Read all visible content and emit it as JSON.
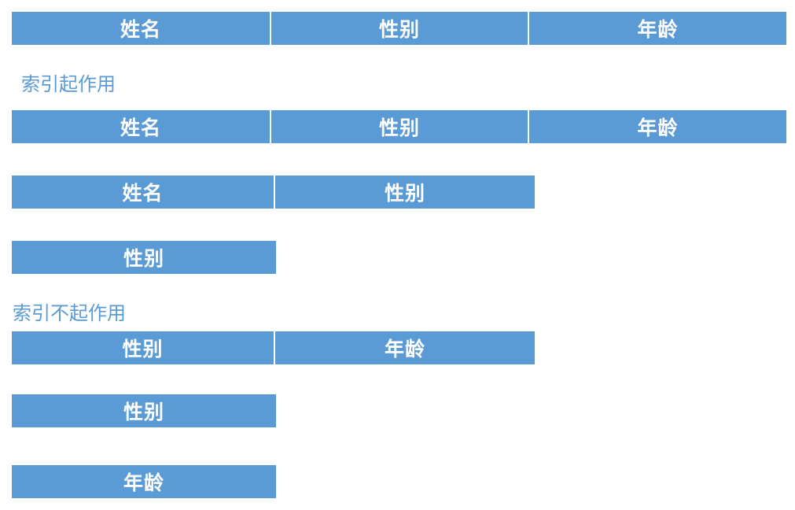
{
  "colors": {
    "bar_fill": "#5b9bd5",
    "bar_text": "#ffffff",
    "heading_text": "#5b9bd5"
  },
  "sections": {
    "works_heading": "索引起作用",
    "fails_heading": "索引不起作用"
  },
  "rows": [
    {
      "cells": [
        "姓名",
        "性别",
        "年龄"
      ]
    },
    {
      "cells": [
        "姓名",
        "性别",
        "年龄"
      ]
    },
    {
      "cells": [
        "姓名",
        "性别"
      ]
    },
    {
      "cells": [
        "性别"
      ]
    },
    {
      "cells": [
        "性别",
        "年龄"
      ]
    },
    {
      "cells": [
        "性别"
      ]
    },
    {
      "cells": [
        "年龄"
      ]
    }
  ]
}
